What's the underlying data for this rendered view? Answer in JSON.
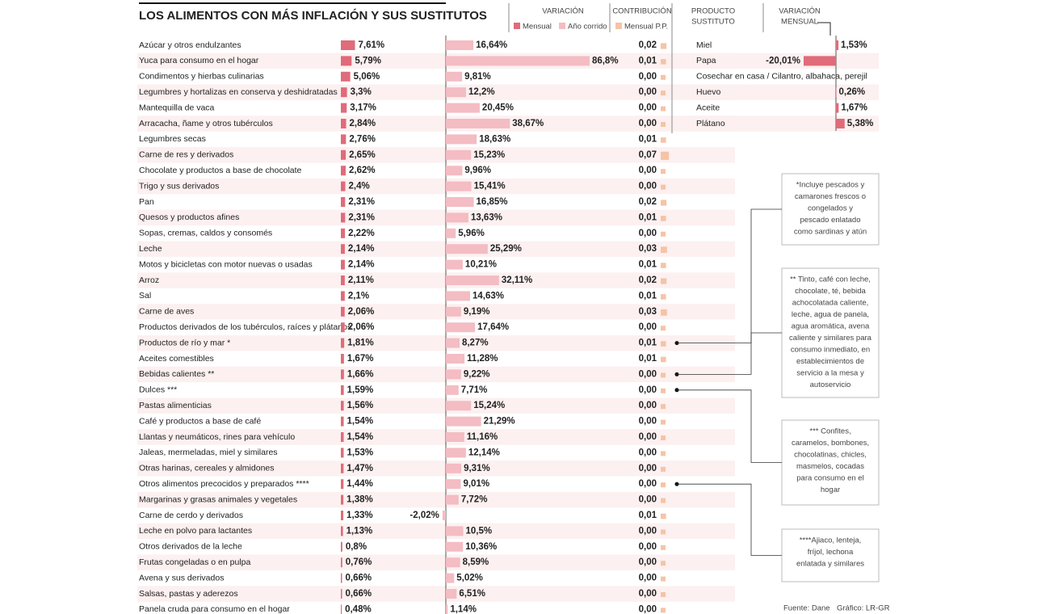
{
  "title": "LOS ALIMENTOS CON MÁS INFLACIÓN Y SUS SUSTITUTOS",
  "headers": {
    "variacion": "VARIACIÓN",
    "contribucion": "CONTRIBUCIÓN",
    "producto": [
      "PRODUCTO",
      "SUSTITUTO"
    ],
    "variacion_mensual": [
      "VARIACIÓN",
      "MENSUAL"
    ]
  },
  "legend": [
    {
      "name": "Mensual",
      "color": "#e06b7a"
    },
    {
      "name": "Año corrido",
      "color": "#f4bcc3"
    },
    {
      "name": "Mensual P.P.",
      "color": "#f5c4a5"
    }
  ],
  "items": [
    "Azúcar y otros endulzantes",
    "Yuca para consumo en el hogar",
    "Condimentos y hierbas culinarias",
    "Legumbres y hortalizas en conserva y deshidratadas",
    "Mantequilla de vaca",
    "Arracacha, ñame y otros tubérculos",
    "Legumbres secas",
    "Carne de res y derivados",
    "Chocolate y productos a base de chocolate",
    "Trigo y sus derivados",
    "Pan",
    "Quesos y productos afines",
    "Sopas, cremas, caldos y consomés",
    "Leche",
    "Motos y bicicletas con motor nuevas o usadas",
    "Arroz",
    "Sal",
    "Carne de aves",
    "Productos derivados de los tubérculos, raíces y plátanos",
    "Productos de río y mar *",
    "Aceites comestibles",
    "Bebidas calientes **",
    "Dulces ***",
    "Pastas alimenticias",
    "Café y productos a base de café",
    "Llantas y neumáticos, rines para vehículo",
    "Jaleas, mermeladas, miel y similares",
    "Otras harinas, cereales y almidones",
    "Otros alimentos precocidos y preparados ****",
    "Margarinas y grasas animales y vegetales",
    "Carne de cerdo y derivados",
    "Leche en polvo para lactantes",
    "Otros derivados de la leche",
    "Frutas congeladas o en pulpa",
    "Avena y sus derivados",
    "Salsas, pastas y aderezos",
    "Panela cruda para consumo en el hogar"
  ],
  "monthly": {
    "values": [
      7.61,
      5.79,
      5.06,
      3.3,
      3.17,
      2.84,
      2.76,
      2.65,
      2.62,
      2.4,
      2.31,
      2.31,
      2.22,
      2.14,
      2.14,
      2.11,
      2.1,
      2.06,
      2.06,
      1.81,
      1.67,
      1.66,
      1.59,
      1.56,
      1.54,
      1.54,
      1.53,
      1.47,
      1.44,
      1.38,
      1.33,
      1.13,
      0.8,
      0.76,
      0.66,
      0.66,
      0.48
    ],
    "value_labels": [
      "7,61%",
      "5,79%",
      "5,06%",
      "3,3%",
      "3,17%",
      "2,84%",
      "2,76%",
      "2,65%",
      "2,62%",
      "2,4%",
      "2,31%",
      "2,31%",
      "2,22%",
      "2,14%",
      "2,14%",
      "2,11%",
      "2,1%",
      "2,06%",
      "2,06%",
      "1,81%",
      "1,67%",
      "1,66%",
      "1,59%",
      "1,56%",
      "1,54%",
      "1,54%",
      "1,53%",
      "1,47%",
      "1,44%",
      "1,38%",
      "1,33%",
      "1,13%",
      "0,8%",
      "0,76%",
      "0,66%",
      "0,66%",
      "0,48%"
    ]
  },
  "ytd": {
    "values": [
      16.64,
      86.8,
      9.81,
      12.2,
      20.45,
      38.67,
      18.63,
      15.23,
      9.96,
      15.41,
      16.85,
      13.63,
      5.96,
      25.29,
      10.21,
      32.11,
      14.63,
      9.19,
      17.64,
      8.27,
      11.28,
      9.22,
      7.71,
      15.24,
      21.29,
      11.16,
      12.14,
      9.31,
      9.01,
      7.72,
      -2.02,
      10.5,
      10.36,
      8.59,
      5.02,
      6.51,
      1.14
    ],
    "value_labels": [
      "16,64%",
      "86,8%",
      "9,81%",
      "12,2%",
      "20,45%",
      "38,67%",
      "18,63%",
      "15,23%",
      "9,96%",
      "15,41%",
      "16,85%",
      "13,63%",
      "5,96%",
      "25,29%",
      "10,21%",
      "32,11%",
      "14,63%",
      "9,19%",
      "17,64%",
      "8,27%",
      "11,28%",
      "9,22%",
      "7,71%",
      "15,24%",
      "21,29%",
      "11,16%",
      "12,14%",
      "9,31%",
      "9,01%",
      "7,72%",
      "-2,02%",
      "10,5%",
      "10,36%",
      "8,59%",
      "5,02%",
      "6,51%",
      "1,14%"
    ]
  },
  "contribution": {
    "values": [
      0.02,
      0.01,
      0,
      0,
      0,
      0,
      0.01,
      0.07,
      0,
      0,
      0.02,
      0.01,
      0,
      0.03,
      0.01,
      0.02,
      0.01,
      0.03,
      0,
      0.01,
      0.01,
      0,
      0,
      0,
      0,
      0,
      0,
      0,
      0,
      0,
      0.01,
      0,
      0,
      0,
      0,
      0,
      0
    ],
    "value_labels": [
      "0,02",
      "0,01",
      "0,00",
      "0,00",
      "0,00",
      "0,00",
      "0,01",
      "0,07",
      "0,00",
      "0,00",
      "0,02",
      "0,01",
      "0,00",
      "0,03",
      "0,01",
      "0,02",
      "0,01",
      "0,03",
      "0,00",
      "0,01",
      "0,01",
      "0,00",
      "0,00",
      "0,00",
      "0,00",
      "0,00",
      "0,00",
      "0,00",
      "0,00",
      "0,00",
      "0,01",
      "0,00",
      "0,00",
      "0,00",
      "0,00",
      "0,00",
      "0,00"
    ]
  },
  "substitutes": {
    "names": [
      "Miel",
      "Papa",
      "Cosechar en casa / Cilantro, albahaca, perejil",
      "Huevo",
      "Aceite",
      "Plátano"
    ],
    "values": [
      1.53,
      -20.01,
      null,
      0.26,
      1.67,
      5.38
    ],
    "value_labels": [
      "1,53%",
      "-20,01%",
      null,
      "0,26%",
      "1,67%",
      "5,38%"
    ]
  },
  "notes": [
    [
      "*Incluye pescados y",
      "camarones frescos o",
      "congelados y",
      "pescado enlatado",
      "como sardinas y atún"
    ],
    [
      "** Tinto, café con leche,",
      "chocolate, té, bebida",
      "achocolatada caliente,",
      "leche, agua de panela,",
      "agua aromática, avena",
      "caliente y similares para",
      "consumo inmediato, en",
      "establecimientos de",
      "servicio a la mesa y",
      "autoservicio"
    ],
    [
      "*** Confites,",
      "caramelos, bombones,",
      "chocolatinas, chicles,",
      "masmelos, cocadas",
      "para consumo en el",
      "hogar"
    ],
    [
      "****Ajiaco, lenteja,",
      "fríjol, lechona",
      "enlatada y similares"
    ]
  ],
  "source": "Fuente: Dane",
  "credit": "Gráfico: LR-GR"
}
